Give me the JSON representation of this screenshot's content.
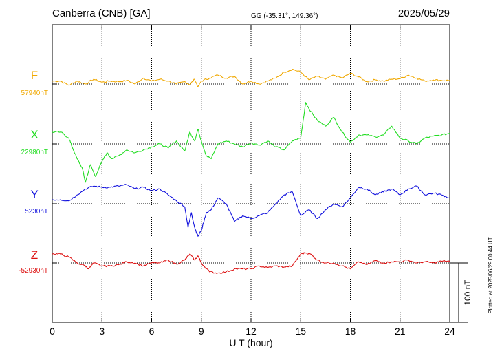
{
  "header": {
    "station": "Canberra (CNB)  [GA]",
    "coords": "GG (-35.31°, 149.36°)",
    "date": "2025/05/29"
  },
  "side_note": "Plotted at 2025/06/29 00:44 UT",
  "scale_label": "100 nT",
  "chart_data": {
    "type": "line",
    "xlabel": "U T (hour)",
    "xlim": [
      0,
      24
    ],
    "x_ticks": [
      "0",
      "3",
      "6",
      "9",
      "12",
      "15",
      "18",
      "21",
      "24"
    ],
    "scale_bar_nT": 100,
    "series": [
      {
        "name": "F",
        "baseline_label": "57940nT",
        "baseline": 57940,
        "color": "#f0a800",
        "x": [
          0,
          0.5,
          1,
          1.5,
          2,
          2.5,
          3,
          3.5,
          4,
          4.5,
          5,
          5.5,
          6,
          6.5,
          7,
          7.5,
          8,
          8.3,
          8.6,
          8.8,
          9,
          9.5,
          10,
          10.5,
          11,
          11.5,
          12,
          12.5,
          13,
          13.5,
          14,
          14.5,
          15,
          15.5,
          16,
          16.5,
          17,
          17.5,
          18,
          18.5,
          19,
          19.5,
          20,
          20.5,
          21,
          21.5,
          22,
          22.5,
          23,
          23.5,
          24
        ],
        "y": [
          57945,
          57945,
          57938,
          57945,
          57940,
          57948,
          57943,
          57945,
          57944,
          57946,
          57940,
          57950,
          57945,
          57948,
          57945,
          57940,
          57944,
          57939,
          57948,
          57935,
          57945,
          57950,
          57955,
          57950,
          57953,
          57940,
          57945,
          57940,
          57945,
          57950,
          57960,
          57965,
          57960,
          57947,
          57953,
          57948,
          57955,
          57950,
          57958,
          57952,
          57944,
          57947,
          57945,
          57948,
          57949,
          57955,
          57950,
          57945,
          57947,
          57946,
          57946
        ]
      },
      {
        "name": "X",
        "baseline_label": "22980nT",
        "baseline": 22980,
        "color": "#22dd22",
        "x": [
          0,
          0.5,
          1,
          1.2,
          1.5,
          1.8,
          2,
          2.3,
          2.6,
          3,
          3.3,
          3.6,
          4,
          4.5,
          5,
          5.5,
          6,
          6.5,
          7,
          7.5,
          8,
          8.3,
          8.6,
          8.8,
          9,
          9.3,
          9.6,
          10,
          10.5,
          11,
          11.5,
          12,
          12.5,
          13,
          13.5,
          14,
          14.5,
          15,
          15.3,
          15.6,
          16,
          16.5,
          17,
          17.5,
          18,
          18.5,
          19,
          19.5,
          20,
          20.5,
          21,
          21.5,
          22,
          22.5,
          23,
          23.5,
          24
        ],
        "y": [
          23000,
          23000,
          22990,
          22975,
          22955,
          22940,
          22915,
          22945,
          22925,
          22950,
          22965,
          22955,
          22960,
          22970,
          22965,
          22970,
          22975,
          22980,
          22973,
          22985,
          22968,
          23000,
          22985,
          23005,
          22985,
          22960,
          22955,
          22980,
          22985,
          22980,
          22975,
          22982,
          22978,
          22985,
          22975,
          22970,
          22985,
          22990,
          23050,
          23035,
          23020,
          23010,
          23025,
          23000,
          22983,
          22995,
          22995,
          22992,
          22995,
          23010,
          22990,
          22985,
          22980,
          22990,
          22993,
          22995,
          22998
        ]
      },
      {
        "name": "Y",
        "baseline_label": "5230nT",
        "baseline": 5230,
        "color": "#1010dd",
        "x": [
          0,
          0.5,
          1,
          1.5,
          2,
          2.5,
          3,
          3.5,
          4,
          4.5,
          5,
          5.5,
          6,
          6.5,
          7,
          7.5,
          8,
          8.2,
          8.4,
          8.6,
          8.8,
          9,
          9.3,
          9.6,
          10,
          10.5,
          11,
          11.5,
          12,
          12.5,
          13,
          13.5,
          14,
          14.5,
          15,
          15.5,
          16,
          16.5,
          17,
          17.5,
          18,
          18.5,
          19,
          19.5,
          20,
          20.5,
          21,
          21.5,
          22,
          22.5,
          23,
          23.5,
          24
        ],
        "y": [
          5237,
          5237,
          5235,
          5245,
          5255,
          5260,
          5258,
          5258,
          5260,
          5262,
          5255,
          5258,
          5252,
          5255,
          5245,
          5235,
          5225,
          5190,
          5215,
          5190,
          5175,
          5185,
          5215,
          5220,
          5240,
          5230,
          5200,
          5210,
          5205,
          5210,
          5215,
          5230,
          5245,
          5250,
          5210,
          5220,
          5205,
          5220,
          5230,
          5225,
          5240,
          5258,
          5255,
          5245,
          5250,
          5255,
          5245,
          5255,
          5260,
          5245,
          5248,
          5245,
          5240
        ]
      },
      {
        "name": "Z",
        "baseline_label": "-52930nT",
        "baseline": -52930,
        "color": "#dd1010",
        "x": [
          0,
          0.5,
          1,
          1.5,
          2,
          2.2,
          2.5,
          3,
          3.5,
          4,
          4.5,
          5,
          5.5,
          6,
          6.5,
          7,
          7.5,
          8,
          8.3,
          8.6,
          8.8,
          9,
          9.5,
          10,
          10.5,
          11,
          11.5,
          12,
          12.5,
          13,
          13.5,
          14,
          14.5,
          15,
          15.3,
          15.6,
          16,
          16.5,
          17,
          17.5,
          18,
          18.5,
          19,
          19.5,
          20,
          20.5,
          21,
          21.5,
          22,
          22.5,
          23,
          23.5,
          24
        ],
        "y": [
          -52915,
          -52915,
          -52920,
          -52930,
          -52935,
          -52940,
          -52930,
          -52935,
          -52935,
          -52933,
          -52928,
          -52930,
          -52935,
          -52930,
          -52930,
          -52925,
          -52932,
          -52925,
          -52915,
          -52925,
          -52918,
          -52930,
          -52945,
          -52947,
          -52945,
          -52940,
          -52940,
          -52940,
          -52935,
          -52938,
          -52935,
          -52937,
          -52935,
          -52915,
          -52913,
          -52915,
          -52925,
          -52930,
          -52930,
          -52935,
          -52940,
          -52928,
          -52933,
          -52926,
          -52930,
          -52928,
          -52928,
          -52925,
          -52930,
          -52928,
          -52930,
          -52927,
          -52927
        ]
      }
    ]
  }
}
